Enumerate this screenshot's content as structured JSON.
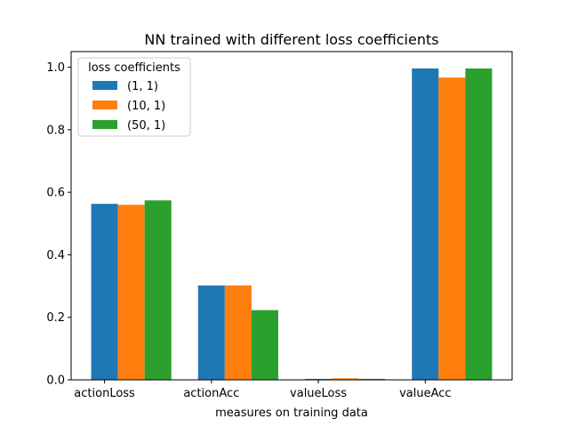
{
  "chart_data": {
    "type": "bar",
    "title": "NN trained with different loss coefficients",
    "xlabel": "measures on training data",
    "ylabel": "",
    "categories": [
      "actionLoss",
      "actionAcc",
      "valueLoss",
      "valueAcc"
    ],
    "series": [
      {
        "name": "(1, 1)",
        "color": "#1f77b4",
        "values": [
          0.563,
          0.302,
          0.003,
          0.996
        ]
      },
      {
        "name": "(10, 1)",
        "color": "#ff7f0e",
        "values": [
          0.56,
          0.302,
          0.005,
          0.967
        ]
      },
      {
        "name": "(50, 1)",
        "color": "#2ca02c",
        "values": [
          0.574,
          0.223,
          0.003,
          0.996
        ]
      }
    ],
    "ylim": [
      0,
      1.05
    ],
    "yticks": [
      "0.0",
      "0.2",
      "0.4",
      "0.6",
      "0.8",
      "1.0"
    ],
    "legend": {
      "title": "loss coefficients",
      "position": "top-left"
    },
    "grid": false
  }
}
